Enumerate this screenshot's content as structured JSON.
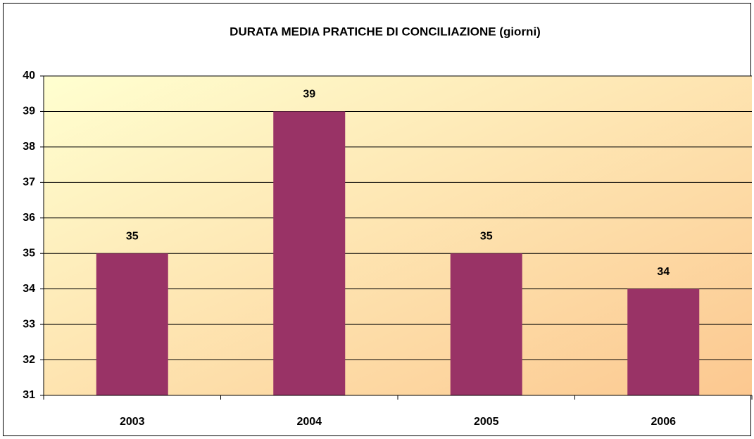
{
  "chart_data": {
    "type": "bar",
    "title": "DURATA MEDIA PRATICHE DI CONCILIAZIONE (giorni)",
    "categories": [
      "2003",
      "2004",
      "2005",
      "2006"
    ],
    "values": [
      35,
      39,
      35,
      34
    ],
    "color": "#993366",
    "ylim": [
      31,
      40
    ],
    "yticks": [
      31,
      32,
      33,
      34,
      35,
      36,
      37,
      38,
      39,
      40
    ],
    "grid": true,
    "data_labels": true
  }
}
